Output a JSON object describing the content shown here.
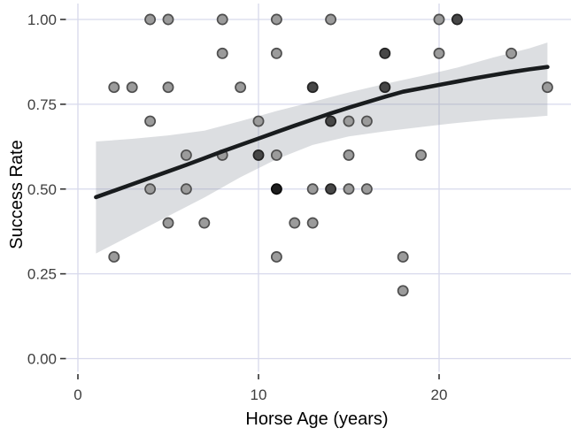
{
  "figure": {
    "background": "#ffffff",
    "panel_background": "#ffffff",
    "grid_color": "#d7d9ec",
    "tick_mark_color": "#333333"
  },
  "chart_data": {
    "type": "scatter",
    "title": "",
    "xlabel": "Horse Age (years)",
    "ylabel": "Success Rate",
    "xlim": [
      -0.64,
      27.3
    ],
    "ylim": [
      -0.04,
      1.047
    ],
    "grid": "major-only",
    "legend": "none",
    "x_ticks": {
      "values": [
        0,
        10,
        20
      ],
      "labels": [
        "0",
        "10",
        "20"
      ]
    },
    "y_ticks": {
      "values": [
        1.0,
        0.75,
        0.5,
        0.25,
        0.0
      ],
      "labels": [
        "1.00",
        "0.75",
        "0.50",
        "0.25",
        "0.00"
      ]
    },
    "point_styles": {
      "normal": {
        "fill": "#9b9b9b",
        "stroke": "#4f4f4f"
      },
      "dark": {
        "fill": "#474747",
        "stroke": "#232323"
      },
      "darkest": {
        "fill": "#1e1e1e",
        "stroke": "#0a0a0a"
      }
    },
    "points": [
      {
        "x": 4,
        "y": 1.0,
        "shade": "normal"
      },
      {
        "x": 5,
        "y": 1.0,
        "shade": "normal"
      },
      {
        "x": 8,
        "y": 1.0,
        "shade": "normal"
      },
      {
        "x": 11,
        "y": 1.0,
        "shade": "normal"
      },
      {
        "x": 14,
        "y": 1.0,
        "shade": "normal"
      },
      {
        "x": 20,
        "y": 1.0,
        "shade": "normal"
      },
      {
        "x": 21,
        "y": 1.0,
        "shade": "dark"
      },
      {
        "x": 8,
        "y": 0.9,
        "shade": "normal"
      },
      {
        "x": 11,
        "y": 0.9,
        "shade": "normal"
      },
      {
        "x": 17,
        "y": 0.9,
        "shade": "dark"
      },
      {
        "x": 20,
        "y": 0.9,
        "shade": "normal"
      },
      {
        "x": 24,
        "y": 0.9,
        "shade": "normal"
      },
      {
        "x": 2,
        "y": 0.8,
        "shade": "normal"
      },
      {
        "x": 3,
        "y": 0.8,
        "shade": "normal"
      },
      {
        "x": 5,
        "y": 0.8,
        "shade": "normal"
      },
      {
        "x": 9,
        "y": 0.8,
        "shade": "normal"
      },
      {
        "x": 13,
        "y": 0.8,
        "shade": "dark"
      },
      {
        "x": 17,
        "y": 0.8,
        "shade": "dark"
      },
      {
        "x": 26,
        "y": 0.8,
        "shade": "normal"
      },
      {
        "x": 4,
        "y": 0.7,
        "shade": "normal"
      },
      {
        "x": 10,
        "y": 0.7,
        "shade": "normal"
      },
      {
        "x": 14,
        "y": 0.7,
        "shade": "dark"
      },
      {
        "x": 15,
        "y": 0.7,
        "shade": "normal"
      },
      {
        "x": 16,
        "y": 0.7,
        "shade": "normal"
      },
      {
        "x": 6,
        "y": 0.6,
        "shade": "normal"
      },
      {
        "x": 8,
        "y": 0.6,
        "shade": "normal"
      },
      {
        "x": 10,
        "y": 0.6,
        "shade": "dark"
      },
      {
        "x": 11,
        "y": 0.6,
        "shade": "normal"
      },
      {
        "x": 15,
        "y": 0.6,
        "shade": "normal"
      },
      {
        "x": 19,
        "y": 0.6,
        "shade": "normal"
      },
      {
        "x": 4,
        "y": 0.5,
        "shade": "normal"
      },
      {
        "x": 6,
        "y": 0.5,
        "shade": "normal"
      },
      {
        "x": 11,
        "y": 0.5,
        "shade": "darkest"
      },
      {
        "x": 13,
        "y": 0.5,
        "shade": "normal"
      },
      {
        "x": 14,
        "y": 0.5,
        "shade": "dark"
      },
      {
        "x": 15,
        "y": 0.5,
        "shade": "normal"
      },
      {
        "x": 16,
        "y": 0.5,
        "shade": "normal"
      },
      {
        "x": 5,
        "y": 0.4,
        "shade": "normal"
      },
      {
        "x": 7,
        "y": 0.4,
        "shade": "normal"
      },
      {
        "x": 12,
        "y": 0.4,
        "shade": "normal"
      },
      {
        "x": 13,
        "y": 0.4,
        "shade": "normal"
      },
      {
        "x": 2,
        "y": 0.3,
        "shade": "normal"
      },
      {
        "x": 11,
        "y": 0.3,
        "shade": "normal"
      },
      {
        "x": 18,
        "y": 0.3,
        "shade": "normal"
      },
      {
        "x": 18,
        "y": 0.2,
        "shade": "normal"
      }
    ],
    "trend_line": {
      "color": "#191c1e",
      "width": 4.6,
      "points": [
        [
          1,
          0.476
        ],
        [
          2,
          0.495
        ],
        [
          3,
          0.514
        ],
        [
          4,
          0.533
        ],
        [
          5,
          0.552
        ],
        [
          6,
          0.571
        ],
        [
          7,
          0.591
        ],
        [
          8,
          0.611
        ],
        [
          9,
          0.63
        ],
        [
          10,
          0.649
        ],
        [
          11,
          0.668
        ],
        [
          12,
          0.687
        ],
        [
          13,
          0.705
        ],
        [
          14,
          0.723
        ],
        [
          15,
          0.74
        ],
        [
          16,
          0.756
        ],
        [
          17,
          0.772
        ],
        [
          18,
          0.787
        ],
        [
          19,
          0.797
        ],
        [
          20,
          0.807
        ],
        [
          21,
          0.817
        ],
        [
          22,
          0.827
        ],
        [
          23,
          0.836
        ],
        [
          24,
          0.845
        ],
        [
          25,
          0.853
        ],
        [
          26,
          0.86
        ]
      ]
    },
    "confidence_band": {
      "fill": "rgba(150,155,163,0.33)",
      "points": [
        [
          1,
          0.31,
          0.64
        ],
        [
          3,
          0.365,
          0.648
        ],
        [
          5,
          0.42,
          0.658
        ],
        [
          7,
          0.475,
          0.672
        ],
        [
          9,
          0.535,
          0.7
        ],
        [
          11,
          0.588,
          0.73
        ],
        [
          13,
          0.63,
          0.757
        ],
        [
          15,
          0.655,
          0.785
        ],
        [
          17,
          0.67,
          0.81
        ],
        [
          19,
          0.683,
          0.833
        ],
        [
          21,
          0.695,
          0.858
        ],
        [
          23,
          0.705,
          0.888
        ],
        [
          25,
          0.712,
          0.915
        ],
        [
          26,
          0.716,
          0.932
        ]
      ]
    }
  }
}
